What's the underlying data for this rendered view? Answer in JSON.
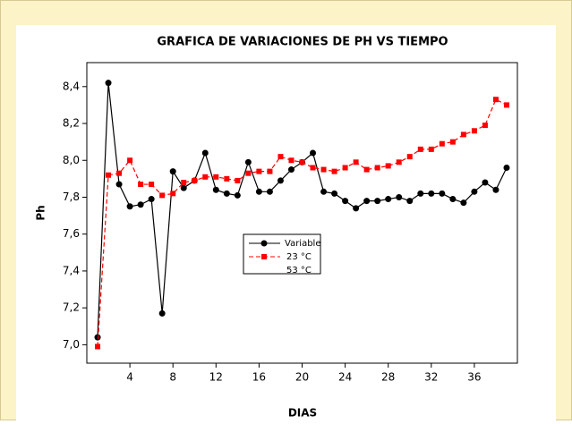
{
  "chart_data": {
    "type": "line",
    "title": "GRAFICA DE VARIACIONES DE PH VS TIEMPO",
    "xlabel": "DIAS",
    "ylabel": "Ph",
    "legend_title": "Variable",
    "x": [
      1,
      2,
      3,
      4,
      5,
      6,
      7,
      8,
      9,
      10,
      11,
      12,
      13,
      14,
      15,
      16,
      17,
      18,
      19,
      20,
      21,
      22,
      23,
      24,
      25,
      26,
      27,
      28,
      29,
      30,
      31,
      32,
      33,
      34,
      35,
      36,
      37,
      38,
      39
    ],
    "series": [
      {
        "name": "23 °C",
        "color": "#000000",
        "marker": "circle",
        "values": [
          7.04,
          8.42,
          7.87,
          7.75,
          7.76,
          7.79,
          7.17,
          7.94,
          7.85,
          7.89,
          8.04,
          7.84,
          7.82,
          7.81,
          7.99,
          7.83,
          7.83,
          7.89,
          7.95,
          7.99,
          8.04,
          7.83,
          7.82,
          7.78,
          7.74,
          7.78,
          7.78,
          7.79,
          7.8,
          7.78,
          7.82,
          7.82,
          7.82,
          7.79,
          7.77,
          7.83,
          7.88,
          7.84,
          7.96
        ]
      },
      {
        "name": "53 °C",
        "color": "#ff0000",
        "marker": "square",
        "dashed": true,
        "values": [
          6.99,
          7.92,
          7.93,
          8.0,
          7.87,
          7.87,
          7.81,
          7.82,
          7.88,
          7.89,
          7.91,
          7.91,
          7.9,
          7.89,
          7.93,
          7.94,
          7.94,
          8.02,
          8.0,
          7.99,
          7.96,
          7.95,
          7.94,
          7.96,
          7.99,
          7.95,
          7.96,
          7.97,
          7.99,
          8.02,
          8.06,
          8.06,
          8.09,
          8.1,
          8.14,
          8.16,
          8.19,
          8.33,
          8.3
        ]
      }
    ],
    "xlim": [
      0,
      40
    ],
    "xticks": [
      4,
      8,
      12,
      16,
      20,
      24,
      28,
      32,
      36
    ],
    "ylim": [
      6.9,
      8.53
    ],
    "yticks": [
      {
        "value": 7.0,
        "label": "7,0"
      },
      {
        "value": 7.2,
        "label": "7,2"
      },
      {
        "value": 7.4,
        "label": "7,4"
      },
      {
        "value": 7.6,
        "label": "7,6"
      },
      {
        "value": 7.8,
        "label": "7,8"
      },
      {
        "value": 8.0,
        "label": "8,0"
      },
      {
        "value": 8.2,
        "label": "8,2"
      },
      {
        "value": 8.4,
        "label": "8,4"
      }
    ]
  }
}
